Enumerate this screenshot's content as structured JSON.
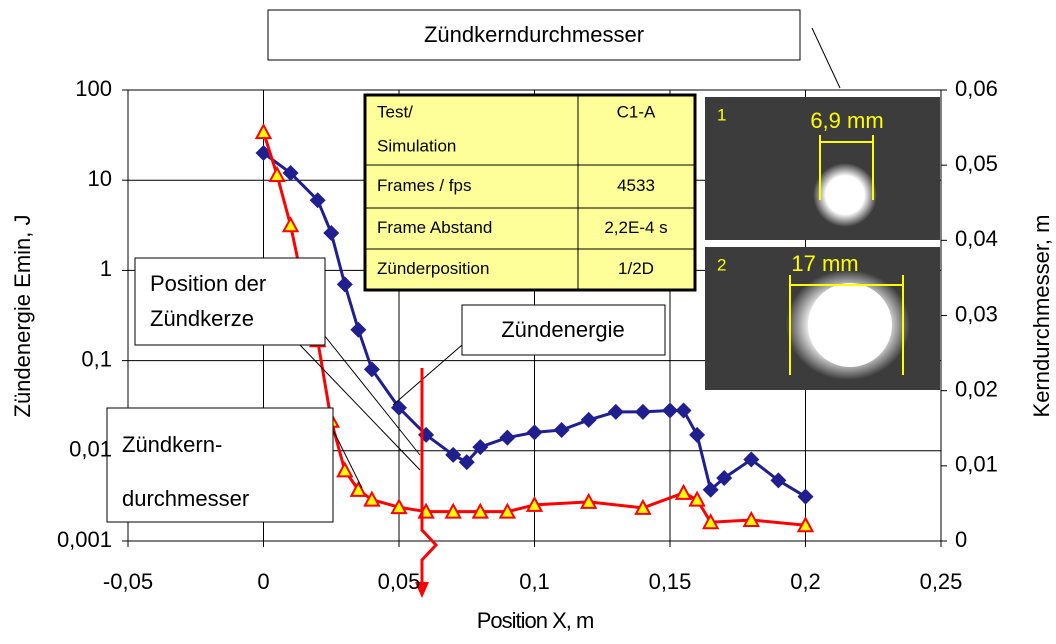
{
  "chart_data": {
    "type": "line",
    "xlabel": "Position X, m",
    "ylabel": "Zündenergie Emin, J",
    "y2label": "Kerndurchmesser, m",
    "xlim": [
      -0.05,
      0.25
    ],
    "xticks": [
      {
        "value": -0.05,
        "label": "-0,05"
      },
      0,
      {
        "value": 0.05,
        "label": "0,05"
      },
      {
        "value": 0.1,
        "label": "0,1"
      },
      {
        "value": 0.15,
        "label": "0,15"
      },
      {
        "value": 0.2,
        "label": "0,2"
      },
      {
        "value": 0.25,
        "label": "0,25"
      }
    ],
    "ylim": [
      0.001,
      100
    ],
    "yscale": "log",
    "yticks": [
      {
        "value": 0.001,
        "label": "0,001"
      },
      {
        "value": 0.01,
        "label": "0,01"
      },
      {
        "value": 0.1,
        "label": "0,1"
      },
      1,
      10,
      100
    ],
    "y2lim": [
      0,
      0.06
    ],
    "y2ticks": [
      0,
      {
        "value": 0.01,
        "label": "0,01"
      },
      {
        "value": 0.02,
        "label": "0,02"
      },
      {
        "value": 0.03,
        "label": "0,03"
      },
      {
        "value": 0.04,
        "label": "0,04"
      },
      {
        "value": 0.05,
        "label": "0,05"
      },
      {
        "value": 0.06,
        "label": "0,06"
      }
    ],
    "grid": true,
    "series": [
      {
        "name": "Zündenergie",
        "color": "#1f1f8f",
        "marker": "diamond",
        "x": [
          0,
          0.01,
          0.02,
          0.025,
          0.03,
          0.035,
          0.04,
          0.05,
          0.06,
          0.07,
          0.075,
          0.08,
          0.09,
          0.1,
          0.11,
          0.12,
          0.13,
          0.14,
          0.15,
          0.155,
          0.16,
          0.165,
          0.17,
          0.18,
          0.19,
          0.2
        ],
        "values": [
          20,
          12,
          6,
          2.6,
          0.7,
          0.22,
          0.08,
          0.03,
          0.015,
          0.009,
          0.0075,
          0.011,
          0.014,
          0.016,
          0.017,
          0.022,
          0.027,
          0.027,
          0.028,
          0.028,
          0.015,
          0.0037,
          0.005,
          0.008,
          0.0047,
          0.0031
        ]
      },
      {
        "name": "Zündkerndurchmesser",
        "color": "#ff0000",
        "marker": "triangle",
        "axis": "y2",
        "x": [
          0,
          0.005,
          0.01,
          0.015,
          0.02,
          0.025,
          0.03,
          0.035,
          0.04,
          0.05,
          0.06,
          0.07,
          0.08,
          0.09,
          0.1,
          0.12,
          0.14,
          0.155,
          0.16,
          0.165,
          0.18,
          0.2
        ],
        "values": [
          0.0544,
          0.0487,
          0.042,
          0.0334,
          0.0267,
          0.016,
          0.0094,
          0.0068,
          0.0055,
          0.0045,
          0.0039,
          0.0039,
          0.0039,
          0.0039,
          0.0048,
          0.0052,
          0.0044,
          0.0064,
          0.0055,
          0.0025,
          0.0028,
          0.0021
        ]
      }
    ],
    "annotations": {
      "position": [
        "Position der",
        "Zündkerze"
      ],
      "kern": [
        "Zündkern-",
        "durchmesser"
      ]
    },
    "table": {
      "rows": [
        [
          [
            "Test/",
            "Simulation"
          ],
          "C1-A"
        ],
        [
          "Frames / fps",
          "4533"
        ],
        [
          "Frame Abstand",
          "2,2E-4 s"
        ],
        [
          "Zünderposition",
          "1/2D"
        ]
      ]
    },
    "images": [
      {
        "index": "1",
        "label": "6,9 mm"
      },
      {
        "index": "2",
        "label": "17 mm"
      }
    ]
  }
}
